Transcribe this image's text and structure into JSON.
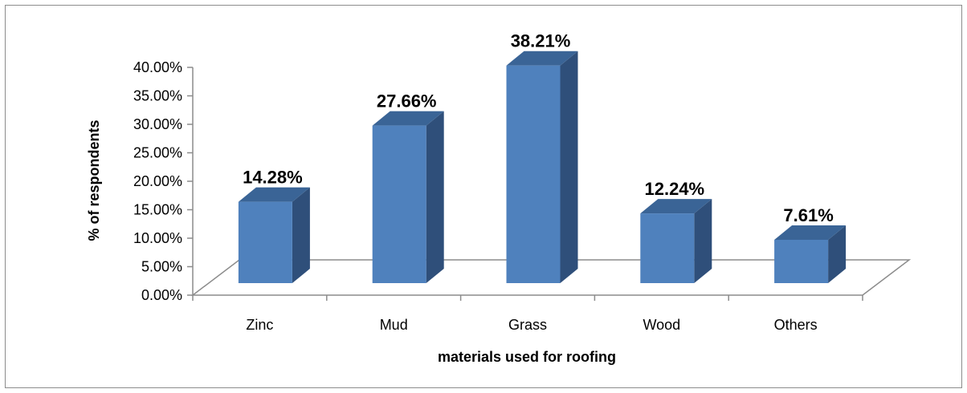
{
  "chart_data": {
    "type": "bar",
    "style": "3d-column",
    "categories": [
      "Zinc",
      "Mud",
      "Grass",
      "Wood",
      "Others"
    ],
    "values": [
      14.28,
      27.66,
      38.21,
      12.24,
      7.61
    ],
    "data_labels": [
      "14.28%",
      "27.66%",
      "38.21%",
      "12.24%",
      "7.61%"
    ],
    "title": "",
    "xlabel": "materials used for roofing",
    "ylabel": "% of respondents",
    "ylim": [
      0,
      40
    ],
    "yticks": [
      0,
      5,
      10,
      15,
      20,
      25,
      30,
      35,
      40
    ],
    "ytick_labels": [
      "0.00%",
      "5.00%",
      "10.00%",
      "15.00%",
      "20.00%",
      "25.00%",
      "30.00%",
      "35.00%",
      "40.00%"
    ],
    "grid": false,
    "legend": "none",
    "colors": {
      "bar_front": "#4f81bd",
      "bar_side": "#2f4f7a",
      "bar_top": "#3a6496",
      "axis": "#8c8c8c"
    }
  }
}
